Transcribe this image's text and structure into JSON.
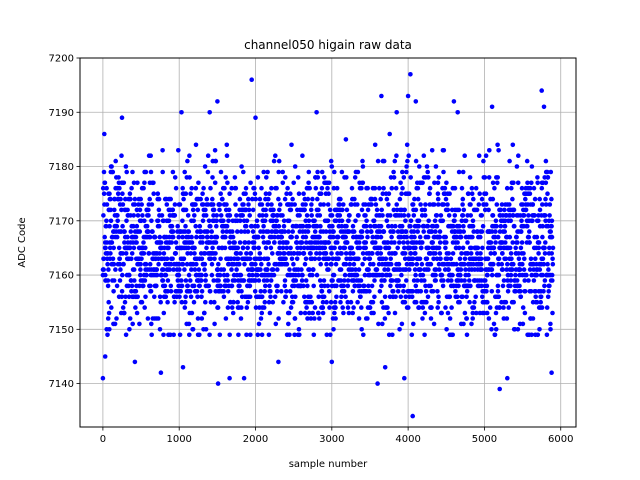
{
  "chart_data": {
    "type": "scatter",
    "title": "channel050 higain raw data",
    "xlabel": "sample number",
    "ylabel": "ADC Code",
    "xlim": [
      -300,
      6200
    ],
    "ylim": [
      7132,
      7200
    ],
    "xticks": [
      0,
      1000,
      2000,
      3000,
      4000,
      5000,
      6000
    ],
    "xtick_labels": [
      "0",
      "1000",
      "2000",
      "3000",
      "4000",
      "5000",
      "6000"
    ],
    "yticks": [
      7140,
      7150,
      7160,
      7170,
      7180,
      7190,
      7200
    ],
    "ytick_labels": [
      "7140",
      "7150",
      "7160",
      "7170",
      "7180",
      "7190",
      "7200"
    ],
    "grid": true,
    "marker_color": "#0000ff",
    "x_range": [
      0,
      5900
    ],
    "sample_count": 5900,
    "typical_range": [
      7150,
      7185
    ],
    "central_value": 7165,
    "outliers": [
      {
        "x": 0,
        "y": 7141
      },
      {
        "x": 30,
        "y": 7145
      },
      {
        "x": 250,
        "y": 7189
      },
      {
        "x": 420,
        "y": 7144
      },
      {
        "x": 760,
        "y": 7142
      },
      {
        "x": 1030,
        "y": 7190
      },
      {
        "x": 1050,
        "y": 7143
      },
      {
        "x": 1400,
        "y": 7190
      },
      {
        "x": 1500,
        "y": 7192
      },
      {
        "x": 1510,
        "y": 7140
      },
      {
        "x": 1660,
        "y": 7141
      },
      {
        "x": 1850,
        "y": 7141
      },
      {
        "x": 1950,
        "y": 7196
      },
      {
        "x": 2000,
        "y": 7189
      },
      {
        "x": 2800,
        "y": 7190
      },
      {
        "x": 2300,
        "y": 7144
      },
      {
        "x": 3000,
        "y": 7144
      },
      {
        "x": 3600,
        "y": 7140
      },
      {
        "x": 3650,
        "y": 7193
      },
      {
        "x": 3700,
        "y": 7143
      },
      {
        "x": 3850,
        "y": 7190
      },
      {
        "x": 3950,
        "y": 7141
      },
      {
        "x": 4000,
        "y": 7193
      },
      {
        "x": 4030,
        "y": 7197
      },
      {
        "x": 4060,
        "y": 7134
      },
      {
        "x": 4100,
        "y": 7192
      },
      {
        "x": 4600,
        "y": 7192
      },
      {
        "x": 4650,
        "y": 7190
      },
      {
        "x": 5100,
        "y": 7191
      },
      {
        "x": 5200,
        "y": 7139
      },
      {
        "x": 5300,
        "y": 7141
      },
      {
        "x": 5750,
        "y": 7194
      },
      {
        "x": 5780,
        "y": 7191
      },
      {
        "x": 5880,
        "y": 7142
      }
    ]
  }
}
